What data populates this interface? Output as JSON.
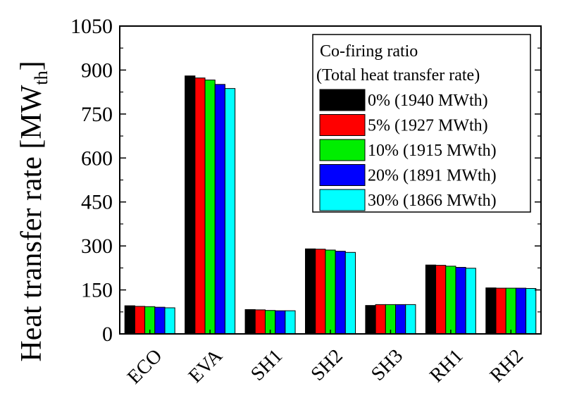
{
  "chart_data": {
    "type": "bar",
    "title": "",
    "xlabel": "",
    "ylabel_main": "Heat transfer rate [MW",
    "ylabel_sub": "th",
    "ylabel_close": "]",
    "ylim": [
      0,
      1050
    ],
    "yticks": [
      0,
      150,
      300,
      450,
      600,
      750,
      900,
      1050
    ],
    "categories": [
      "ECO",
      "EVA",
      "SH1",
      "SH2",
      "SH3",
      "RH1",
      "RH2"
    ],
    "legend_title_1": "Co-firing ratio",
    "legend_title_2": "(Total heat transfer rate)",
    "legend_position": "top-right",
    "series": [
      {
        "name": "0% (1940 MWth)",
        "color": "#000000",
        "values": [
          96,
          880,
          83,
          290,
          97,
          235,
          157
        ]
      },
      {
        "name": "5% (1927 MWth)",
        "color": "#ff0000",
        "values": [
          94,
          873,
          82,
          289,
          100,
          234,
          156
        ]
      },
      {
        "name": "10% (1915 MWth)",
        "color": "#00ee00",
        "values": [
          93,
          866,
          80,
          286,
          100,
          231,
          156
        ]
      },
      {
        "name": "20% (1891 MWth)",
        "color": "#0000ff",
        "values": [
          91,
          851,
          79,
          282,
          100,
          227,
          156
        ]
      },
      {
        "name": "30% (1866 MWth)",
        "color": "#00ffff",
        "values": [
          89,
          837,
          79,
          278,
          100,
          224,
          155
        ]
      }
    ]
  }
}
